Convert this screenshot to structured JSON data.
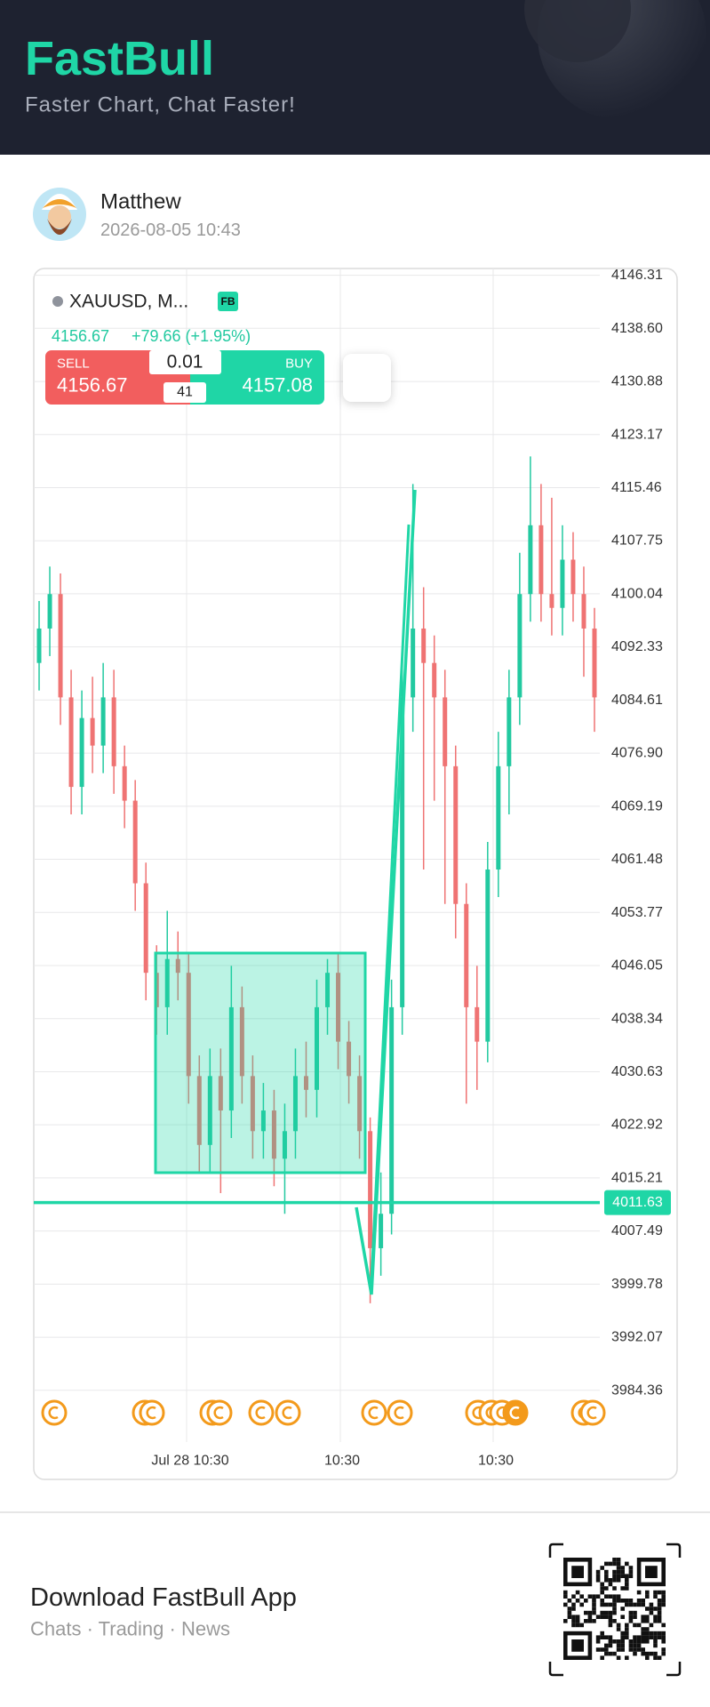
{
  "header": {
    "title": "FastBull",
    "subtitle": "Faster Chart, Chat Faster!"
  },
  "post": {
    "user": "Matthew",
    "time": "2026-08-05 10:43"
  },
  "chart": {
    "type": "candlestick",
    "symbol": "XAUUSD, M...",
    "badge": "FB",
    "quote": {
      "price": 4156.67,
      "change": "+79.66 (+1.95%)"
    },
    "trade": {
      "sell_label": "SELL",
      "sell_price": 4156.67,
      "buy_label": "BUY",
      "buy_price": 4157.08,
      "lot": 0.01,
      "spread": 41
    },
    "ylim": [
      3984.36,
      4146.31
    ],
    "yticks": [
      4146.31,
      {
        "value": 4138.6,
        "label": "4138.60"
      },
      4130.88,
      4123.17,
      4115.46,
      4107.75,
      4100.04,
      4092.33,
      4084.61,
      {
        "value": 4076.9,
        "label": "4076.90"
      },
      4069.19,
      4061.48,
      4053.77,
      4046.05,
      4038.34,
      4030.63,
      4022.92,
      4015.21,
      4007.49,
      3999.78,
      3992.07,
      3984.36
    ],
    "x_labels": [
      "Jul 28 10:30",
      "10:30",
      "10:30"
    ],
    "current_price": 4011.63,
    "colors": {
      "up": "#22c9a0",
      "down": "#ef7373",
      "accent": "#1fd6a6"
    },
    "candles": [
      {
        "o": 4090,
        "h": 4099,
        "l": 4086,
        "c": 4095
      },
      {
        "o": 4095,
        "h": 4104,
        "l": 4091,
        "c": 4100
      },
      {
        "o": 4100,
        "h": 4103,
        "l": 4081,
        "c": 4085
      },
      {
        "o": 4085,
        "h": 4089,
        "l": 4068,
        "c": 4072
      },
      {
        "o": 4072,
        "h": 4086,
        "l": 4068,
        "c": 4082
      },
      {
        "o": 4082,
        "h": 4088,
        "l": 4074,
        "c": 4078
      },
      {
        "o": 4078,
        "h": 4090,
        "l": 4074,
        "c": 4085
      },
      {
        "o": 4085,
        "h": 4089,
        "l": 4071,
        "c": 4075
      },
      {
        "o": 4075,
        "h": 4078,
        "l": 4066,
        "c": 4070
      },
      {
        "o": 4070,
        "h": 4073,
        "l": 4054,
        "c": 4058
      },
      {
        "o": 4058,
        "h": 4061,
        "l": 4041,
        "c": 4045
      },
      {
        "o": 4045,
        "h": 4049,
        "l": 4036,
        "c": 4040
      },
      {
        "o": 4040,
        "h": 4054,
        "l": 4036,
        "c": 4047
      },
      {
        "o": 4047,
        "h": 4051,
        "l": 4041,
        "c": 4045
      },
      {
        "o": 4045,
        "h": 4048,
        "l": 4026,
        "c": 4030
      },
      {
        "o": 4030,
        "h": 4033,
        "l": 4016,
        "c": 4020
      },
      {
        "o": 4020,
        "h": 4034,
        "l": 4016,
        "c": 4030
      },
      {
        "o": 4030,
        "h": 4034,
        "l": 4013,
        "c": 4025
      },
      {
        "o": 4025,
        "h": 4046,
        "l": 4021,
        "c": 4040
      },
      {
        "o": 4040,
        "h": 4043,
        "l": 4026,
        "c": 4030
      },
      {
        "o": 4030,
        "h": 4033,
        "l": 4018,
        "c": 4022
      },
      {
        "o": 4022,
        "h": 4029,
        "l": 4018,
        "c": 4025
      },
      {
        "o": 4025,
        "h": 4028,
        "l": 4014,
        "c": 4018
      },
      {
        "o": 4018,
        "h": 4026,
        "l": 4010,
        "c": 4022
      },
      {
        "o": 4022,
        "h": 4034,
        "l": 4018,
        "c": 4030
      },
      {
        "o": 4030,
        "h": 4035,
        "l": 4024,
        "c": 4028
      },
      {
        "o": 4028,
        "h": 4044,
        "l": 4024,
        "c": 4040
      },
      {
        "o": 4040,
        "h": 4047,
        "l": 4036,
        "c": 4045
      },
      {
        "o": 4045,
        "h": 4048,
        "l": 4031,
        "c": 4035
      },
      {
        "o": 4035,
        "h": 4038,
        "l": 4026,
        "c": 4030
      },
      {
        "o": 4030,
        "h": 4033,
        "l": 4018,
        "c": 4022
      },
      {
        "o": 4022,
        "h": 4024,
        "l": 3997,
        "c": 4005
      },
      {
        "o": 4005,
        "h": 4016,
        "l": 4001,
        "c": 4010
      },
      {
        "o": 4010,
        "h": 4044,
        "l": 4007,
        "c": 4040
      },
      {
        "o": 4040,
        "h": 4090,
        "l": 4036,
        "c": 4085
      },
      {
        "o": 4085,
        "h": 4116,
        "l": 4080,
        "c": 4095
      },
      {
        "o": 4095,
        "h": 4101,
        "l": 4060,
        "c": 4090
      },
      {
        "o": 4090,
        "h": 4094,
        "l": 4070,
        "c": 4085
      },
      {
        "o": 4085,
        "h": 4089,
        "l": 4055,
        "c": 4075
      },
      {
        "o": 4075,
        "h": 4078,
        "l": 4050,
        "c": 4055
      },
      {
        "o": 4055,
        "h": 4058,
        "l": 4026,
        "c": 4040
      },
      {
        "o": 4040,
        "h": 4046,
        "l": 4028,
        "c": 4035
      },
      {
        "o": 4035,
        "h": 4064,
        "l": 4032,
        "c": 4060
      },
      {
        "o": 4060,
        "h": 4080,
        "l": 4056,
        "c": 4075
      },
      {
        "o": 4075,
        "h": 4089,
        "l": 4068,
        "c": 4085
      },
      {
        "o": 4085,
        "h": 4106,
        "l": 4081,
        "c": 4100
      },
      {
        "o": 4100,
        "h": 4120,
        "l": 4096,
        "c": 4110
      },
      {
        "o": 4110,
        "h": 4116,
        "l": 4096,
        "c": 4100
      },
      {
        "o": 4100,
        "h": 4114,
        "l": 4094,
        "c": 4098
      },
      {
        "o": 4098,
        "h": 4110,
        "l": 4094,
        "c": 4105
      },
      {
        "o": 4105,
        "h": 4109,
        "l": 4096,
        "c": 4100
      },
      {
        "o": 4100,
        "h": 4104,
        "l": 4088,
        "c": 4095
      },
      {
        "o": 4095,
        "h": 4098,
        "l": 4080,
        "c": 4085
      }
    ]
  },
  "footer": {
    "title": "Download FastBull App",
    "subtitle": "Chats · Trading · News"
  }
}
